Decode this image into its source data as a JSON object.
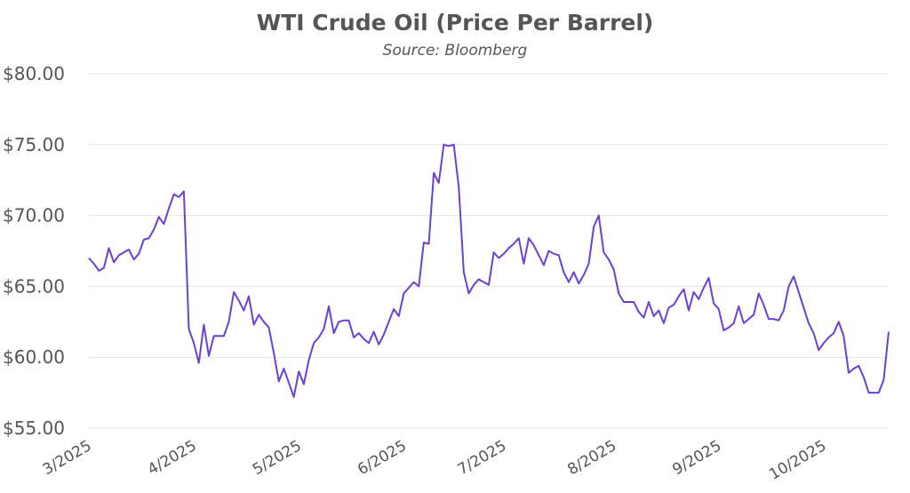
{
  "chart_data": {
    "type": "line",
    "title": "WTI Crude Oil (Price Per Barrel)",
    "subtitle": "Source: Bloomberg",
    "categories": [
      "3/2025",
      null,
      null,
      null,
      null,
      null,
      null,
      null,
      null,
      null,
      null,
      null,
      null,
      null,
      null,
      null,
      null,
      null,
      null,
      null,
      null,
      "4/2025",
      null,
      null,
      null,
      null,
      null,
      null,
      null,
      null,
      null,
      null,
      null,
      null,
      null,
      null,
      null,
      null,
      null,
      null,
      null,
      null,
      "5/2025",
      null,
      null,
      null,
      null,
      null,
      null,
      null,
      null,
      null,
      null,
      null,
      null,
      null,
      null,
      null,
      null,
      null,
      null,
      null,
      null,
      "6/2025",
      null,
      null,
      null,
      null,
      null,
      null,
      null,
      null,
      null,
      null,
      null,
      null,
      null,
      null,
      null,
      null,
      null,
      null,
      null,
      "7/2025",
      null,
      null,
      null,
      null,
      null,
      null,
      null,
      null,
      null,
      null,
      null,
      null,
      null,
      null,
      null,
      null,
      null,
      null,
      null,
      null,
      null,
      "8/2025",
      null,
      null,
      null,
      null,
      null,
      null,
      null,
      null,
      null,
      null,
      null,
      null,
      null,
      null,
      null,
      null,
      null,
      null,
      null,
      null,
      "9/2025",
      null,
      null,
      null,
      null,
      null,
      null,
      null,
      null,
      null,
      null,
      null,
      null,
      null,
      null,
      null,
      null,
      null,
      null,
      null,
      null,
      "10/2025",
      null,
      null,
      null,
      null,
      null,
      null,
      null,
      null,
      null,
      null,
      null,
      null,
      null
    ],
    "series": [
      {
        "name": "WTI",
        "color": "#6b3fd8",
        "values": [
          67.0,
          66.6,
          66.1,
          66.3,
          67.7,
          66.7,
          67.2,
          67.4,
          67.6,
          66.9,
          67.3,
          68.3,
          68.4,
          69.0,
          69.9,
          69.4,
          70.5,
          71.5,
          71.3,
          71.7,
          62.0,
          61.0,
          59.6,
          62.3,
          60.1,
          61.5,
          61.5,
          61.5,
          62.5,
          64.6,
          64.0,
          63.3,
          64.3,
          62.3,
          63.0,
          62.5,
          62.1,
          60.3,
          58.3,
          59.2,
          58.2,
          57.2,
          59.0,
          58.1,
          59.8,
          61.0,
          61.4,
          62.0,
          63.6,
          61.7,
          62.5,
          62.6,
          62.6,
          61.4,
          61.7,
          61.3,
          61.0,
          61.8,
          60.9,
          61.6,
          62.5,
          63.4,
          62.9,
          64.5,
          64.9,
          65.3,
          65.0,
          68.1,
          68.0,
          73.0,
          72.3,
          75.0,
          74.9,
          75.0,
          72.0,
          66.0,
          64.5,
          65.1,
          65.5,
          65.3,
          65.1,
          67.4,
          67.0,
          67.3,
          67.7,
          68.0,
          68.4,
          66.6,
          68.4,
          67.9,
          67.2,
          66.5,
          67.5,
          67.3,
          67.2,
          66.0,
          65.3,
          66.0,
          65.2,
          65.8,
          66.6,
          69.2,
          70.0,
          67.4,
          66.9,
          66.2,
          64.5,
          63.9,
          63.9,
          63.9,
          63.2,
          62.8,
          63.9,
          62.9,
          63.3,
          62.4,
          63.5,
          63.7,
          64.3,
          64.8,
          63.3,
          64.6,
          64.1,
          64.9,
          65.6,
          63.8,
          63.4,
          61.9,
          62.1,
          62.4,
          63.6,
          62.4,
          62.7,
          63.0,
          64.5,
          63.7,
          62.7,
          62.7,
          62.6,
          63.3,
          65.0,
          65.7,
          64.6,
          63.5,
          62.4,
          61.7,
          60.5,
          61.0,
          61.4,
          61.7,
          62.5,
          61.5,
          58.9,
          59.2,
          59.4,
          58.6,
          57.5,
          57.5,
          57.5,
          58.4,
          61.8
        ]
      }
    ],
    "ylim": [
      55,
      80
    ],
    "yticks": [
      {
        "value": 55,
        "label": "$55.00"
      },
      {
        "value": 60,
        "label": "$60.00"
      },
      {
        "value": 65,
        "label": "$65.00"
      },
      {
        "value": 70,
        "label": "$70.00"
      },
      {
        "value": 75,
        "label": "$75.00"
      },
      {
        "value": 80,
        "label": "$80.00"
      }
    ],
    "grid": true
  }
}
